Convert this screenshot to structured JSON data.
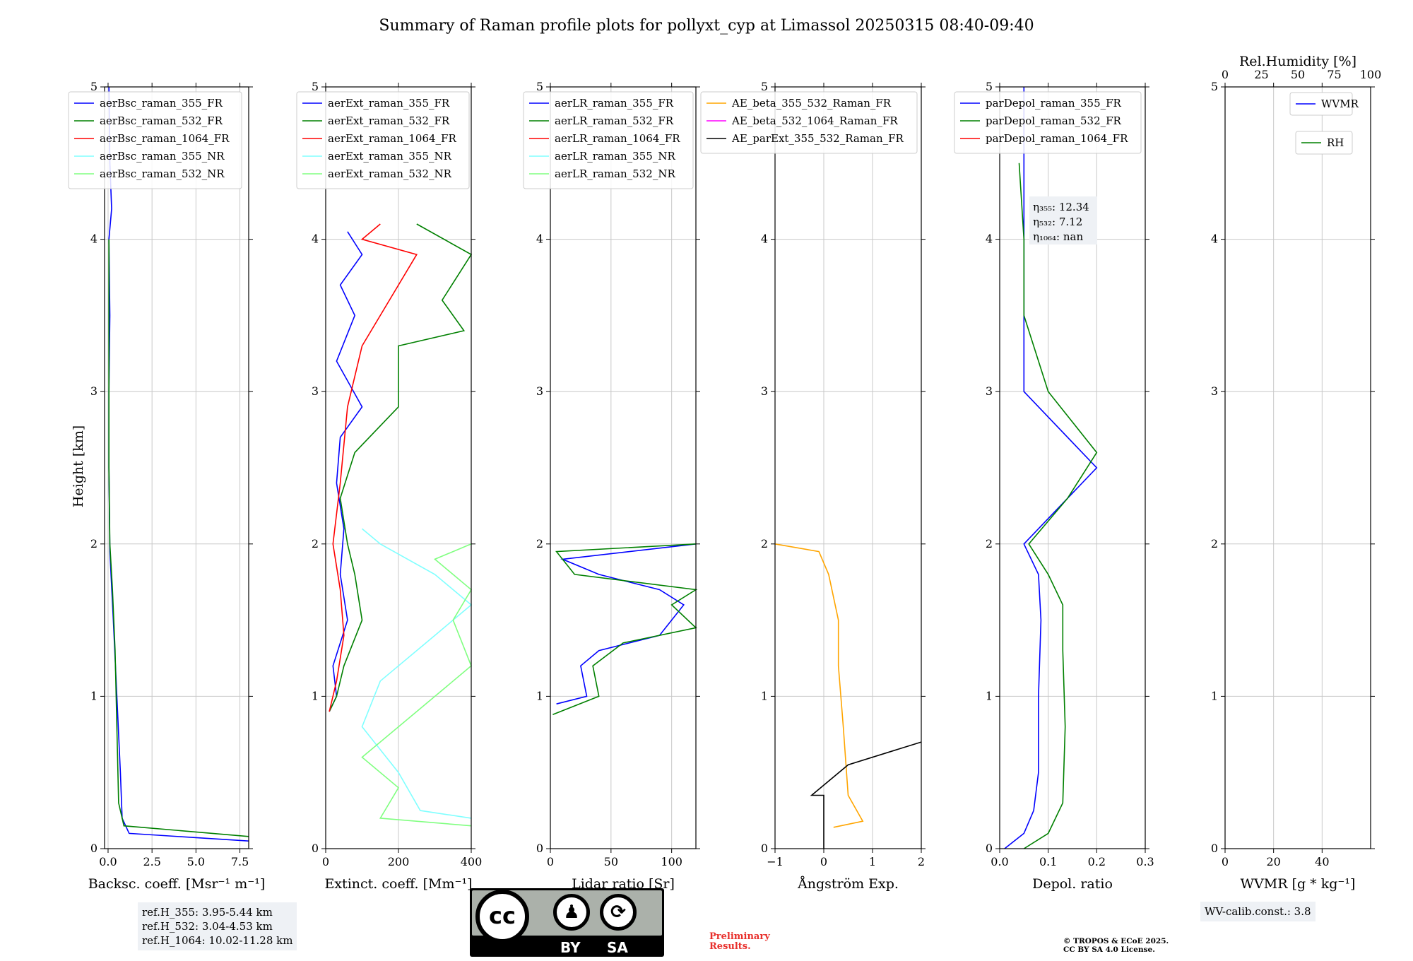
{
  "title": "Summary of Raman profile plots for pollyxt_cyp at Limassol 20250315 08:40-09:40",
  "ylabel": "Height [km]",
  "colors": {
    "blue": "#0000ff",
    "green": "#008000",
    "red": "#ff0000",
    "cyan": "#80ffff",
    "lightgreen": "#80ff80",
    "orange": "#ffa500",
    "magenta": "#ff00ff",
    "black": "#000000",
    "grid": "#c8c8c8"
  },
  "chart_data": [
    {
      "type": "line",
      "name": "backscatter",
      "xlabel": "Backsc. coeff. [Msr$^{-1}$ m$^{-1}$]",
      "xlabel_text": "Backsc. coeff. [Msr⁻¹ m⁻¹]",
      "xlim": [
        -0.2,
        8
      ],
      "ylim": [
        0,
        5
      ],
      "xticks": [
        0,
        2.5,
        5,
        7.5
      ],
      "xtick_labels": [
        "0.0",
        "2.5",
        "5.0",
        "7.5"
      ],
      "yticks": [
        0,
        1,
        2,
        3,
        4,
        5
      ],
      "ytick_labels": [
        "0",
        "1",
        "2",
        "3",
        "4",
        "5"
      ],
      "legend": "top-right",
      "series": [
        {
          "name": "aerBsc_raman_355_FR",
          "color": "#0000ff",
          "points": [
            [
              8,
              0.05
            ],
            [
              1.2,
              0.1
            ],
            [
              0.8,
              0.2
            ],
            [
              0.7,
              0.5
            ],
            [
              0.5,
              1.0
            ],
            [
              0.3,
              1.5
            ],
            [
              0.1,
              1.95
            ],
            [
              0.05,
              2.5
            ],
            [
              0.05,
              3.0
            ],
            [
              0.1,
              3.5
            ],
            [
              0.05,
              4.0
            ],
            [
              0.2,
              4.2
            ],
            [
              0.1,
              4.5
            ],
            [
              0.05,
              5.0
            ]
          ]
        },
        {
          "name": "aerBsc_raman_532_FR",
          "color": "#008000",
          "points": [
            [
              8,
              0.08
            ],
            [
              0.9,
              0.15
            ],
            [
              0.6,
              0.3
            ],
            [
              0.5,
              0.8
            ],
            [
              0.4,
              1.3
            ],
            [
              0.25,
              1.7
            ],
            [
              0.1,
              2.0
            ],
            [
              0.05,
              2.5
            ],
            [
              0.05,
              3.5
            ],
            [
              0.05,
              4.0
            ]
          ]
        },
        {
          "name": "aerBsc_raman_1064_FR",
          "color": "#ff0000",
          "points": []
        },
        {
          "name": "aerBsc_raman_355_NR",
          "color": "#80ffff",
          "points": []
        },
        {
          "name": "aerBsc_raman_532_NR",
          "color": "#80ff80",
          "points": []
        }
      ]
    },
    {
      "type": "line",
      "name": "extinction",
      "xlabel_text": "Extinct. coeff. [Mm⁻¹]",
      "xlim": [
        0,
        400
      ],
      "ylim": [
        0,
        5
      ],
      "xticks": [
        0,
        200,
        400
      ],
      "xtick_labels": [
        "0",
        "200",
        "400"
      ],
      "yticks": [
        0,
        1,
        2,
        3,
        4,
        5
      ],
      "ytick_labels": [
        "0",
        "1",
        "2",
        "3",
        "4",
        "5"
      ],
      "legend": "top-right",
      "series": [
        {
          "name": "aerExt_raman_355_FR",
          "color": "#0000ff",
          "points": [
            [
              10,
              0.9
            ],
            [
              30,
              1.0
            ],
            [
              20,
              1.2
            ],
            [
              60,
              1.5
            ],
            [
              40,
              1.8
            ],
            [
              50,
              2.1
            ],
            [
              30,
              2.4
            ],
            [
              40,
              2.7
            ],
            [
              100,
              2.9
            ],
            [
              30,
              3.2
            ],
            [
              80,
              3.5
            ],
            [
              40,
              3.7
            ],
            [
              100,
              3.9
            ],
            [
              60,
              4.05
            ]
          ]
        },
        {
          "name": "aerExt_raman_532_FR",
          "color": "#008000",
          "points": [
            [
              10,
              0.9
            ],
            [
              30,
              1.0
            ],
            [
              50,
              1.2
            ],
            [
              100,
              1.5
            ],
            [
              80,
              1.8
            ],
            [
              60,
              2.0
            ],
            [
              40,
              2.3
            ],
            [
              80,
              2.6
            ],
            [
              200,
              2.9
            ],
            [
              200,
              3.3
            ],
            [
              380,
              3.4
            ],
            [
              320,
              3.6
            ],
            [
              400,
              3.9
            ],
            [
              250,
              4.1
            ]
          ]
        },
        {
          "name": "aerExt_raman_1064_FR",
          "color": "#ff0000",
          "points": [
            [
              10,
              0.9
            ],
            [
              30,
              1.1
            ],
            [
              50,
              1.4
            ],
            [
              40,
              1.7
            ],
            [
              20,
              2.0
            ],
            [
              40,
              2.4
            ],
            [
              60,
              2.9
            ],
            [
              100,
              3.3
            ],
            [
              150,
              3.5
            ],
            [
              250,
              3.9
            ],
            [
              100,
              4.0
            ],
            [
              150,
              4.1
            ]
          ]
        },
        {
          "name": "aerExt_raman_355_NR",
          "color": "#80ffff",
          "points": [
            [
              400,
              0.2
            ],
            [
              260,
              0.25
            ],
            [
              200,
              0.5
            ],
            [
              100,
              0.8
            ],
            [
              150,
              1.1
            ],
            [
              300,
              1.4
            ],
            [
              400,
              1.6
            ],
            [
              300,
              1.8
            ],
            [
              150,
              2.0
            ],
            [
              100,
              2.1
            ]
          ]
        },
        {
          "name": "aerExt_raman_532_NR",
          "color": "#80ff80",
          "points": [
            [
              400,
              0.15
            ],
            [
              150,
              0.2
            ],
            [
              200,
              0.4
            ],
            [
              100,
              0.6
            ],
            [
              250,
              0.9
            ],
            [
              400,
              1.2
            ],
            [
              350,
              1.5
            ],
            [
              400,
              1.7
            ],
            [
              300,
              1.9
            ],
            [
              400,
              2.0
            ]
          ]
        }
      ]
    },
    {
      "type": "line",
      "name": "lidar_ratio",
      "xlabel_text": "Lidar ratio [Sr]",
      "xlim": [
        0,
        120
      ],
      "ylim": [
        0,
        5
      ],
      "xticks": [
        0,
        50,
        100
      ],
      "xtick_labels": [
        "0",
        "50",
        "100"
      ],
      "yticks": [
        0,
        1,
        2,
        3,
        4,
        5
      ],
      "ytick_labels": [
        "0",
        "1",
        "2",
        "3",
        "4",
        "5"
      ],
      "legend": "top-right",
      "series": [
        {
          "name": "aerLR_raman_355_FR",
          "color": "#0000ff",
          "points": [
            [
              5,
              0.95
            ],
            [
              30,
              1.0
            ],
            [
              25,
              1.2
            ],
            [
              40,
              1.3
            ],
            [
              90,
              1.4
            ],
            [
              110,
              1.6
            ],
            [
              90,
              1.7
            ],
            [
              40,
              1.8
            ],
            [
              10,
              1.9
            ],
            [
              120,
              2.0
            ]
          ]
        },
        {
          "name": "aerLR_raman_532_FR",
          "color": "#008000",
          "points": [
            [
              2,
              0.88
            ],
            [
              40,
              1.0
            ],
            [
              35,
              1.2
            ],
            [
              60,
              1.35
            ],
            [
              120,
              1.45
            ],
            [
              100,
              1.6
            ],
            [
              120,
              1.7
            ],
            [
              20,
              1.8
            ],
            [
              5,
              1.95
            ],
            [
              120,
              2.0
            ]
          ]
        },
        {
          "name": "aerLR_raman_1064_FR",
          "color": "#ff0000",
          "points": []
        },
        {
          "name": "aerLR_raman_355_NR",
          "color": "#80ffff",
          "points": []
        },
        {
          "name": "aerLR_raman_532_NR",
          "color": "#80ff80",
          "points": []
        }
      ]
    },
    {
      "type": "line",
      "name": "angstrom",
      "xlabel_text": "Ångström Exp.",
      "xlim": [
        -1,
        2
      ],
      "ylim": [
        0,
        5
      ],
      "xticks": [
        -1,
        0,
        1,
        2
      ],
      "xtick_labels": [
        "−1",
        "0",
        "1",
        "2"
      ],
      "yticks": [
        0,
        1,
        2,
        3,
        4,
        5
      ],
      "ytick_labels": [
        "0",
        "1",
        "2",
        "3",
        "4",
        "5"
      ],
      "legend": "top-right",
      "series": [
        {
          "name": "AE_beta_355_532_Raman_FR",
          "color": "#ffa500",
          "points": [
            [
              0.2,
              0.14
            ],
            [
              0.8,
              0.18
            ],
            [
              0.5,
              0.35
            ],
            [
              0.4,
              0.8
            ],
            [
              0.3,
              1.2
            ],
            [
              0.3,
              1.5
            ],
            [
              0.1,
              1.8
            ],
            [
              -0.1,
              1.95
            ],
            [
              -1,
              2.0
            ]
          ]
        },
        {
          "name": "AE_beta_532_1064_Raman_FR",
          "color": "#ff00ff",
          "points": []
        },
        {
          "name": "AE_parExt_355_532_Raman_FR",
          "color": "#000000",
          "points": [
            [
              0,
              0
            ],
            [
              0,
              0.35
            ],
            [
              -0.25,
              0.35
            ],
            [
              0.5,
              0.55
            ],
            [
              2,
              0.7
            ]
          ]
        }
      ]
    },
    {
      "type": "line",
      "name": "depol",
      "xlabel_text": "Depol. ratio",
      "xlim": [
        0,
        0.3
      ],
      "ylim": [
        0,
        5
      ],
      "xticks": [
        0,
        0.1,
        0.2,
        0.3
      ],
      "xtick_labels": [
        "0.0",
        "0.1",
        "0.2",
        "0.3"
      ],
      "yticks": [
        0,
        1,
        2,
        3,
        4,
        5
      ],
      "ytick_labels": [
        "0",
        "1",
        "2",
        "3",
        "4",
        "5"
      ],
      "legend": "top-right",
      "annotation_lines": [
        "η₃₅₅: 12.34",
        "η₅₃₂: 7.12",
        "η₁₀₆₄: nan"
      ],
      "series": [
        {
          "name": "parDepol_raman_355_FR",
          "color": "#0000ff",
          "points": [
            [
              0.01,
              0.0
            ],
            [
              0.05,
              0.1
            ],
            [
              0.07,
              0.25
            ],
            [
              0.08,
              0.5
            ],
            [
              0.08,
              1.0
            ],
            [
              0.085,
              1.5
            ],
            [
              0.08,
              1.8
            ],
            [
              0.05,
              2.0
            ],
            [
              0.2,
              2.5
            ],
            [
              0.05,
              3.0
            ],
            [
              0.05,
              3.5
            ],
            [
              0.05,
              4.0
            ],
            [
              0.05,
              5.0
            ]
          ]
        },
        {
          "name": "parDepol_raman_532_FR",
          "color": "#008000",
          "points": [
            [
              0.05,
              0.0
            ],
            [
              0.1,
              0.1
            ],
            [
              0.13,
              0.3
            ],
            [
              0.135,
              0.8
            ],
            [
              0.13,
              1.3
            ],
            [
              0.13,
              1.6
            ],
            [
              0.1,
              1.8
            ],
            [
              0.06,
              2.0
            ],
            [
              0.14,
              2.3
            ],
            [
              0.2,
              2.6
            ],
            [
              0.1,
              3.0
            ],
            [
              0.05,
              3.5
            ],
            [
              0.05,
              4.0
            ],
            [
              0.04,
              4.5
            ]
          ]
        },
        {
          "name": "parDepol_raman_1064_FR",
          "color": "#ff0000",
          "points": []
        }
      ]
    },
    {
      "type": "line",
      "name": "wvmr",
      "xlabel_text": "WVMR [g * kg⁻¹]",
      "xlim": [
        0,
        60
      ],
      "ylim": [
        0,
        5
      ],
      "xticks": [
        0,
        20,
        40
      ],
      "xtick_labels": [
        "0",
        "20",
        "40"
      ],
      "yticks": [
        0,
        1,
        2,
        3,
        4,
        5
      ],
      "ytick_labels": [
        "0",
        "1",
        "2",
        "3",
        "4",
        "5"
      ],
      "top_axis": {
        "label": "Rel.Humidity [%]",
        "xlim": [
          0,
          100
        ],
        "ticks": [
          0,
          25,
          50,
          75,
          100
        ],
        "tick_labels": [
          "0",
          "25",
          "50",
          "75",
          "100"
        ]
      },
      "series": [
        {
          "name": "WVMR",
          "color": "#0000ff",
          "points": []
        },
        {
          "name": "RH",
          "color": "#008000",
          "points": []
        }
      ]
    }
  ],
  "notes": {
    "refH_355": "ref.H_355: 3.95-5.44 km",
    "refH_532": "ref.H_532: 3.04-4.53 km",
    "refH_1064": "ref.H_1064: 10.02-11.28 km",
    "wv_calib": "WV-calib.const.: 3.8",
    "prelim_1": "Preliminary",
    "prelim_2": "Results.",
    "copyright_1": "© TROPOS & ECoE 2025.",
    "copyright_2": "CC BY SA 4.0 License."
  },
  "license_badge": {
    "cc": "cc",
    "by": "BY",
    "sa": "SA",
    "icon_person": "person-icon",
    "icon_share": "share-alike-icon"
  }
}
